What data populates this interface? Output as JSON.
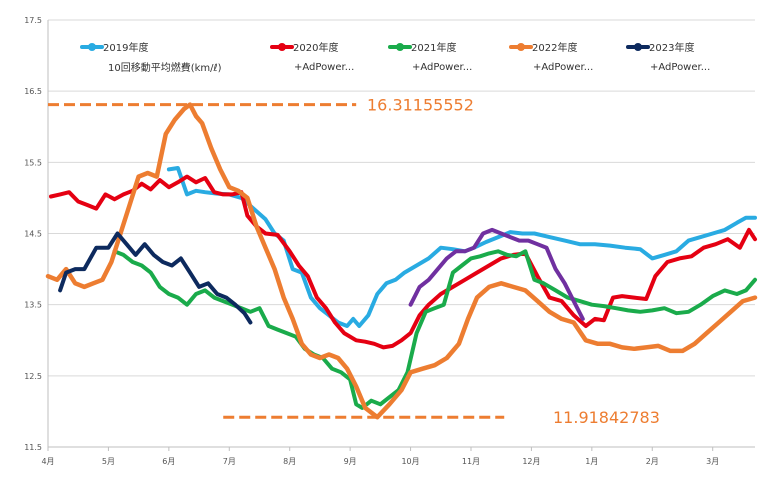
{
  "chart_data": {
    "type": "line",
    "title": "",
    "subtitle": "10回移動平均燃費(km/ℓ)",
    "xlabel": "",
    "ylabel": "",
    "ylim": [
      11.5,
      17.5
    ],
    "yticks": [
      11.5,
      12.5,
      13.5,
      14.5,
      15.5,
      16.5,
      17.5
    ],
    "xlim": [
      0,
      11.7
    ],
    "xticks": [
      {
        "x": 0,
        "label": "4月"
      },
      {
        "x": 1,
        "label": "5月"
      },
      {
        "x": 2,
        "label": "6月"
      },
      {
        "x": 3,
        "label": "7月"
      },
      {
        "x": 4,
        "label": "8月"
      },
      {
        "x": 5,
        "label": "9月"
      },
      {
        "x": 6,
        "label": "10月"
      },
      {
        "x": 7,
        "label": "11月"
      },
      {
        "x": 8,
        "label": "12月"
      },
      {
        "x": 9,
        "label": "1月"
      },
      {
        "x": 10,
        "label": "2月"
      },
      {
        "x": 11,
        "label": "3月"
      }
    ],
    "grid": "horizontal",
    "legend_position": "top",
    "series": [
      {
        "name": "2019年度",
        "sub": "",
        "color": "#29abe2",
        "x": [
          2.0,
          2.15,
          2.3,
          2.45,
          2.6,
          2.8,
          3.0,
          3.2,
          3.4,
          3.6,
          3.75,
          3.9,
          4.05,
          4.2,
          4.35,
          4.5,
          4.65,
          4.8,
          4.95,
          5.05,
          5.15,
          5.3,
          5.45,
          5.6,
          5.75,
          5.9,
          6.1,
          6.3,
          6.5,
          6.7,
          6.9,
          7.05,
          7.25,
          7.45,
          7.65,
          7.85,
          8.05,
          8.3,
          8.55,
          8.8,
          9.05,
          9.3,
          9.55,
          9.8,
          10.0,
          10.2,
          10.4,
          10.6,
          10.8,
          11.0,
          11.2,
          11.4,
          11.55,
          11.7
        ],
        "values": [
          15.4,
          15.42,
          15.05,
          15.1,
          15.08,
          15.06,
          15.05,
          15.0,
          14.85,
          14.7,
          14.5,
          14.4,
          14.0,
          13.95,
          13.6,
          13.45,
          13.35,
          13.25,
          13.2,
          13.3,
          13.2,
          13.35,
          13.65,
          13.8,
          13.85,
          13.95,
          14.05,
          14.15,
          14.3,
          14.28,
          14.25,
          14.3,
          14.38,
          14.45,
          14.52,
          14.5,
          14.5,
          14.45,
          14.4,
          14.35,
          14.35,
          14.33,
          14.3,
          14.28,
          14.15,
          14.2,
          14.25,
          14.4,
          14.45,
          14.5,
          14.55,
          14.65,
          14.72,
          14.72
        ]
      },
      {
        "name": "2020年度",
        "sub": "+AdPower...",
        "color": "#e50012",
        "x": [
          0.05,
          0.2,
          0.35,
          0.5,
          0.65,
          0.8,
          0.95,
          1.1,
          1.25,
          1.4,
          1.55,
          1.7,
          1.85,
          2.0,
          2.15,
          2.3,
          2.45,
          2.6,
          2.75,
          2.9,
          3.05,
          3.2,
          3.3,
          3.45,
          3.6,
          3.8,
          4.0,
          4.15,
          4.3,
          4.45,
          4.6,
          4.75,
          4.9,
          5.1,
          5.25,
          5.4,
          5.55,
          5.7,
          5.85,
          6.0,
          6.15,
          6.3,
          6.5,
          6.7,
          6.9,
          7.1,
          7.3,
          7.5,
          7.7,
          7.9,
          8.1,
          8.3,
          8.5,
          8.7,
          8.9,
          9.05,
          9.2,
          9.35,
          9.5,
          9.7,
          9.9,
          10.05,
          10.25,
          10.45,
          10.65,
          10.85,
          11.05,
          11.25,
          11.45,
          11.6,
          11.7
        ],
        "values": [
          15.02,
          15.05,
          15.08,
          14.95,
          14.9,
          14.85,
          15.05,
          14.98,
          15.05,
          15.1,
          15.2,
          15.12,
          15.25,
          15.15,
          15.22,
          15.3,
          15.22,
          15.28,
          15.08,
          15.05,
          15.05,
          15.08,
          14.75,
          14.6,
          14.5,
          14.48,
          14.25,
          14.05,
          13.9,
          13.6,
          13.45,
          13.25,
          13.1,
          13.0,
          12.98,
          12.95,
          12.9,
          12.92,
          13.0,
          13.1,
          13.35,
          13.5,
          13.65,
          13.75,
          13.85,
          13.95,
          14.05,
          14.15,
          14.2,
          14.22,
          13.9,
          13.6,
          13.55,
          13.35,
          13.2,
          13.3,
          13.28,
          13.6,
          13.62,
          13.6,
          13.58,
          13.9,
          14.1,
          14.15,
          14.18,
          14.3,
          14.35,
          14.42,
          14.3,
          14.55,
          14.42
        ]
      },
      {
        "name": "2021年度",
        "sub": "+AdPower...",
        "color": "#1aab4b",
        "x": [
          1.1,
          1.25,
          1.4,
          1.55,
          1.7,
          1.85,
          2.0,
          2.15,
          2.3,
          2.45,
          2.6,
          2.75,
          2.9,
          3.05,
          3.2,
          3.35,
          3.5,
          3.65,
          3.8,
          3.95,
          4.1,
          4.25,
          4.4,
          4.55,
          4.7,
          4.85,
          5.0,
          5.1,
          5.2,
          5.35,
          5.5,
          5.65,
          5.8,
          5.95,
          6.1,
          6.25,
          6.4,
          6.55,
          6.7,
          6.85,
          7.0,
          7.15,
          7.3,
          7.45,
          7.6,
          7.75,
          7.9,
          8.05,
          8.2,
          8.4,
          8.6,
          8.8,
          9.0,
          9.2,
          9.4,
          9.6,
          9.8,
          10.0,
          10.2,
          10.4,
          10.6,
          10.8,
          11.0,
          11.2,
          11.4,
          11.55,
          11.7
        ],
        "values": [
          14.25,
          14.2,
          14.1,
          14.05,
          13.95,
          13.75,
          13.65,
          13.6,
          13.5,
          13.65,
          13.7,
          13.6,
          13.55,
          13.5,
          13.45,
          13.4,
          13.45,
          13.2,
          13.15,
          13.1,
          13.05,
          12.88,
          12.8,
          12.75,
          12.6,
          12.55,
          12.45,
          12.1,
          12.05,
          12.15,
          12.1,
          12.2,
          12.3,
          12.55,
          13.1,
          13.4,
          13.45,
          13.5,
          13.95,
          14.05,
          14.15,
          14.18,
          14.22,
          14.25,
          14.2,
          14.18,
          14.25,
          13.85,
          13.8,
          13.7,
          13.6,
          13.55,
          13.5,
          13.48,
          13.45,
          13.42,
          13.4,
          13.42,
          13.45,
          13.38,
          13.4,
          13.5,
          13.62,
          13.7,
          13.65,
          13.7,
          13.85
        ]
      },
      {
        "name": "2022年度",
        "sub": "+AdPower...",
        "color": "#ed7d31",
        "x": [
          0.0,
          0.15,
          0.3,
          0.45,
          0.6,
          0.75,
          0.9,
          1.05,
          1.2,
          1.35,
          1.5,
          1.65,
          1.8,
          1.95,
          2.1,
          2.25,
          2.35,
          2.45,
          2.55,
          2.7,
          2.85,
          3.0,
          3.15,
          3.3,
          3.45,
          3.6,
          3.75,
          3.9,
          4.05,
          4.2,
          4.35,
          4.5,
          4.65,
          4.8,
          4.95,
          5.1,
          5.25,
          5.45,
          5.65,
          5.85,
          6.0,
          6.2,
          6.4,
          6.6,
          6.8,
          6.95,
          7.1,
          7.3,
          7.5,
          7.7,
          7.9,
          8.1,
          8.3,
          8.5,
          8.7,
          8.9,
          9.1,
          9.3,
          9.5,
          9.7,
          9.9,
          10.1,
          10.3,
          10.5,
          10.7,
          10.9,
          11.1,
          11.3,
          11.5,
          11.7
        ],
        "values": [
          13.9,
          13.85,
          14.0,
          13.8,
          13.75,
          13.8,
          13.85,
          14.1,
          14.5,
          14.9,
          15.3,
          15.35,
          15.3,
          15.9,
          16.1,
          16.25,
          16.31155552,
          16.15,
          16.05,
          15.7,
          15.4,
          15.15,
          15.1,
          15.0,
          14.6,
          14.3,
          14.0,
          13.6,
          13.3,
          12.95,
          12.8,
          12.75,
          12.8,
          12.75,
          12.6,
          12.35,
          12.05,
          11.91842783,
          12.1,
          12.3,
          12.55,
          12.6,
          12.65,
          12.75,
          12.95,
          13.3,
          13.6,
          13.75,
          13.8,
          13.75,
          13.7,
          13.55,
          13.4,
          13.3,
          13.25,
          13.0,
          12.95,
          12.95,
          12.9,
          12.88,
          12.9,
          12.92,
          12.85,
          12.85,
          12.95,
          13.1,
          13.25,
          13.4,
          13.55,
          13.6
        ]
      },
      {
        "name": "2023年度",
        "sub": "+AdPower...",
        "color": "#0d2a5e",
        "x": [
          0.2,
          0.3,
          0.45,
          0.6,
          0.8,
          1.0,
          1.15,
          1.3,
          1.45,
          1.6,
          1.75,
          1.9,
          2.05,
          2.2,
          2.35,
          2.5,
          2.65,
          2.8,
          2.95,
          3.1,
          3.25,
          3.35
        ],
        "values": [
          13.7,
          13.95,
          14.0,
          14.0,
          14.3,
          14.3,
          14.5,
          14.35,
          14.2,
          14.35,
          14.2,
          14.1,
          14.05,
          14.15,
          13.95,
          13.75,
          13.8,
          13.65,
          13.6,
          13.5,
          13.38,
          13.25
        ]
      },
      {
        "name": "",
        "sub": "",
        "color": "#7030a0",
        "x": [
          6.0,
          6.15,
          6.3,
          6.45,
          6.6,
          6.75,
          6.9,
          7.05,
          7.2,
          7.35,
          7.5,
          7.65,
          7.8,
          7.95,
          8.1,
          8.25,
          8.4,
          8.55,
          8.7,
          8.85
        ],
        "values": [
          13.5,
          13.75,
          13.85,
          14.0,
          14.15,
          14.25,
          14.25,
          14.3,
          14.5,
          14.55,
          14.5,
          14.45,
          14.4,
          14.4,
          14.35,
          14.3,
          14.0,
          13.8,
          13.55,
          13.3
        ]
      }
    ],
    "annotations": [
      {
        "label": "16.31155552",
        "value": 16.31155552,
        "x_from": 0.0,
        "x_to": 5.1,
        "color": "#ed7d31"
      },
      {
        "label": "11.91842783",
        "value": 11.91842783,
        "x_from": 2.9,
        "x_to": 7.55,
        "color": "#ed7d31"
      }
    ]
  }
}
